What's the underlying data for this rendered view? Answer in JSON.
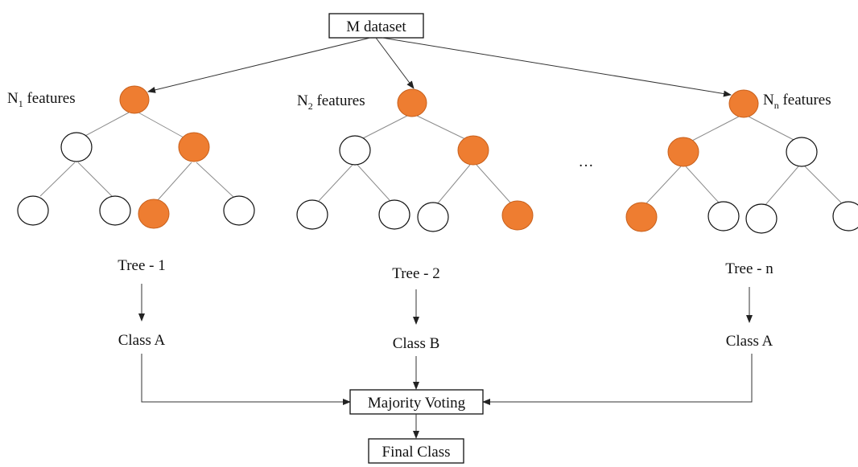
{
  "top_box": "M dataset",
  "trees": [
    {
      "feat_prefix": "N",
      "feat_sub": "1",
      "feat_suffix": " features",
      "name": "Tree - 1",
      "class": "Class A"
    },
    {
      "feat_prefix": "N",
      "feat_sub": "2",
      "feat_suffix": " features",
      "name": "Tree - 2",
      "class": "Class B"
    },
    {
      "feat_prefix": "N",
      "feat_sub": "n",
      "feat_suffix": " features",
      "name": "Tree - n",
      "class": "Class A"
    }
  ],
  "ellipsis": "···",
  "vote_box": "Majority Voting",
  "final_box": "Final Class",
  "colors": {
    "highlight": "#ee7d31",
    "outline": "#111111",
    "edge": "#8c8c8c"
  }
}
